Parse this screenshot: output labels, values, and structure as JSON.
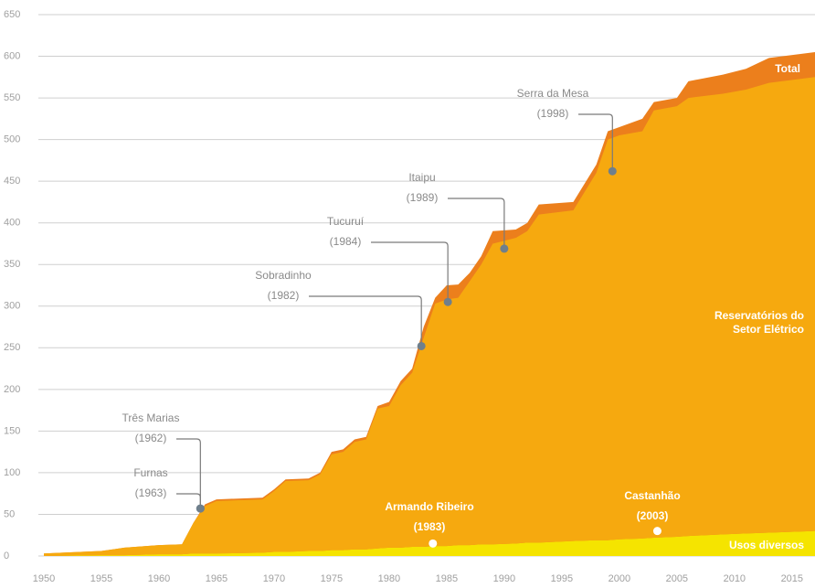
{
  "chart_data": {
    "type": "area",
    "x": [
      1950,
      1955,
      1957,
      1960,
      1962,
      1963,
      1964,
      1965,
      1969,
      1970,
      1971,
      1973,
      1974,
      1975,
      1976,
      1977,
      1978,
      1979,
      1980,
      1981,
      1982,
      1983,
      1984,
      1985,
      1986,
      1987,
      1988,
      1989,
      1991,
      1992,
      1993,
      1996,
      1998,
      1999,
      2000,
      2002,
      2003,
      2005,
      2006,
      2009,
      2011,
      2013,
      2017
    ],
    "series": [
      {
        "name": "Usos diversos",
        "color": "#f5e400",
        "label_color": "#ffffff",
        "stacked": true,
        "values": [
          0,
          1,
          1,
          2,
          2,
          3,
          3,
          3,
          4,
          5,
          5,
          6,
          6,
          7,
          7,
          8,
          8,
          9,
          10,
          10,
          11,
          11,
          12,
          12,
          13,
          13,
          14,
          14,
          15,
          16,
          16,
          18,
          19,
          19,
          20,
          21,
          22,
          23,
          24,
          26,
          27,
          28,
          30
        ]
      },
      {
        "name": "Reservatórios do Setor Elétrico",
        "color": "#f6a90f",
        "label_color": "#ffffff",
        "stacked": true,
        "values": [
          3,
          5,
          9,
          11,
          12,
          37,
          57,
          63,
          64,
          73,
          85,
          85,
          92,
          115,
          118,
          129,
          132,
          168,
          170,
          195,
          209,
          251,
          291,
          296,
          297,
          317,
          336,
          361,
          367,
          374,
          394,
          397,
          441,
          481,
          485,
          489,
          513,
          517,
          526,
          529,
          533,
          540,
          545
        ]
      },
      {
        "name": "Total",
        "color": "#ec7f1c",
        "label_color": "#ffffff",
        "stacked": false,
        "values": [
          3,
          6,
          10,
          13,
          14,
          40,
          62,
          68,
          70,
          80,
          92,
          93,
          100,
          125,
          128,
          140,
          143,
          180,
          185,
          210,
          225,
          275,
          310,
          325,
          326,
          340,
          360,
          390,
          392,
          400,
          422,
          425,
          470,
          510,
          515,
          525,
          545,
          550,
          570,
          578,
          585,
          598,
          605
        ]
      }
    ],
    "xlim": [
      1950,
      2017
    ],
    "xticks": [
      1950,
      1955,
      1960,
      1965,
      1970,
      1975,
      1980,
      1985,
      1990,
      1995,
      2000,
      2005,
      2010,
      2015
    ],
    "ylim": [
      0,
      650
    ],
    "yticks": [
      0,
      50,
      100,
      150,
      200,
      250,
      300,
      350,
      400,
      450,
      500,
      550,
      600,
      650
    ],
    "grid": true,
    "annotations": [
      {
        "label": "Três Marias",
        "year": "(1962)",
        "x": 1963.6,
        "y": 57,
        "color": "#8a8a8a"
      },
      {
        "label": "Furnas",
        "year": "(1963)",
        "x": 1963.6,
        "y": 57,
        "color": "#8a8a8a"
      },
      {
        "label": "Sobradinho",
        "year": "(1982)",
        "x": 1982.8,
        "y": 252,
        "color": "#8a8a8a"
      },
      {
        "label": "Tucuruí",
        "year": "(1984)",
        "x": 1985.1,
        "y": 305,
        "color": "#8a8a8a"
      },
      {
        "label": "Itaipu",
        "year": "(1989)",
        "x": 1990,
        "y": 369,
        "color": "#8a8a8a"
      },
      {
        "label": "Serra da Mesa",
        "year": "(1998)",
        "x": 1999.4,
        "y": 462,
        "color": "#8a8a8a"
      },
      {
        "label": "Armando Ribeiro",
        "year": "(1983)",
        "x": 1983.8,
        "y": 15,
        "color": "#ffffff"
      },
      {
        "label": "Castanhão",
        "year": "(2003)",
        "x": 2003.3,
        "y": 30,
        "color": "#ffffff"
      }
    ]
  }
}
